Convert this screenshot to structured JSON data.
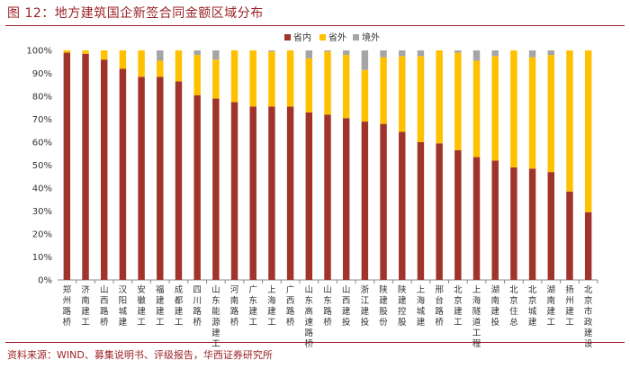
{
  "figure": {
    "title": "图 12：地方建筑国企新签合同金额区域分布",
    "source": "资料来源：WIND、募集说明书、评级报告，华西证券研究所"
  },
  "colors": {
    "domestic_province": "#A0342B",
    "outside_province": "#FFC000",
    "overseas": "#A5A5A5",
    "accent": "#9b2226"
  },
  "chart_data": {
    "type": "bar",
    "stacked": true,
    "title": "",
    "xlabel": "",
    "ylabel": "",
    "ylim": [
      0,
      100
    ],
    "yticks": [
      "0%",
      "10%",
      "20%",
      "30%",
      "40%",
      "50%",
      "60%",
      "70%",
      "80%",
      "90%",
      "100%"
    ],
    "legend": [
      "省内",
      "省外",
      "境外"
    ],
    "legend_position": "top-center",
    "categories": [
      "郑州路桥",
      "济南建工",
      "山西路桥",
      "汉阳城建",
      "安徽建工",
      "福建建工",
      "成都建工",
      "四川路桥",
      "山东能源建工",
      "河南路桥",
      "广东建工",
      "上海建工",
      "广西路桥",
      "山东高速路桥",
      "山东路桥",
      "山西建投",
      "浙江建投",
      "陕建股份",
      "陕建控股",
      "上海城建",
      "邢台路桥",
      "北京建工",
      "上海隧道工程",
      "湖南建投",
      "北京住总",
      "北京城建",
      "湖南建工",
      "扬州建工",
      "北京市政建设"
    ],
    "series": [
      {
        "name": "省内",
        "values": [
          99,
          98.5,
          96,
          92,
          88.5,
          88.5,
          86.5,
          80.5,
          79,
          77.5,
          75.5,
          75.5,
          75.5,
          73,
          72,
          70.5,
          69,
          68,
          64.5,
          60,
          59.5,
          56.5,
          53.5,
          52,
          49,
          48.5,
          47,
          38.5,
          29.5
        ]
      },
      {
        "name": "省外",
        "values": [
          1,
          1.5,
          4,
          8,
          11.5,
          7,
          13.5,
          17.5,
          17,
          22.5,
          24.5,
          24,
          24.5,
          23.5,
          27.5,
          27.5,
          22.5,
          29,
          33,
          37.5,
          40.5,
          42.5,
          42,
          45.5,
          51,
          48.5,
          51,
          61.5,
          70.5
        ]
      },
      {
        "name": "境外",
        "values": [
          0,
          0,
          0,
          0,
          0,
          4.5,
          0,
          2,
          4,
          0,
          0,
          0.5,
          0,
          3.5,
          0.5,
          2,
          8.5,
          3,
          2.5,
          2.5,
          0,
          1,
          4.5,
          2.5,
          0,
          3,
          2,
          0,
          0
        ]
      }
    ]
  }
}
